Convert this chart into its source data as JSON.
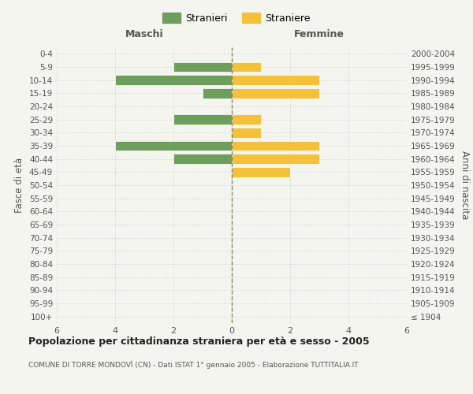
{
  "age_groups": [
    "100+",
    "95-99",
    "90-94",
    "85-89",
    "80-84",
    "75-79",
    "70-74",
    "65-69",
    "60-64",
    "55-59",
    "50-54",
    "45-49",
    "40-44",
    "35-39",
    "30-34",
    "25-29",
    "20-24",
    "15-19",
    "10-14",
    "5-9",
    "0-4"
  ],
  "birth_years": [
    "≤ 1904",
    "1905-1909",
    "1910-1914",
    "1915-1919",
    "1920-1924",
    "1925-1929",
    "1930-1934",
    "1935-1939",
    "1940-1944",
    "1945-1949",
    "1950-1954",
    "1955-1959",
    "1960-1964",
    "1965-1969",
    "1970-1974",
    "1975-1979",
    "1980-1984",
    "1985-1989",
    "1990-1994",
    "1995-1999",
    "2000-2004"
  ],
  "maschi": [
    0,
    0,
    0,
    0,
    0,
    0,
    0,
    0,
    0,
    0,
    0,
    0,
    2,
    4,
    0,
    2,
    0,
    1,
    4,
    2,
    0
  ],
  "femmine": [
    0,
    0,
    0,
    0,
    0,
    0,
    0,
    0,
    0,
    0,
    0,
    2,
    3,
    3,
    1,
    1,
    0,
    3,
    3,
    1,
    0
  ],
  "color_maschi": "#6d9e5b",
  "color_femmine": "#f5c03a",
  "title": "Popolazione per cittadinanza straniera per età e sesso - 2005",
  "subtitle": "COMUNE DI TORRE MONDOVÌ (CN) - Dati ISTAT 1° gennaio 2005 - Elaborazione TUTTITALIA.IT",
  "xlabel_left": "Maschi",
  "xlabel_right": "Femmine",
  "ylabel_left": "Fasce di età",
  "ylabel_right": "Anni di nascita",
  "legend_maschi": "Stranieri",
  "legend_femmine": "Straniere",
  "xlim": 6,
  "background_color": "#f5f5f0",
  "grid_color": "#cccccc",
  "center_line_color": "#888866",
  "bar_edge_color": "white"
}
